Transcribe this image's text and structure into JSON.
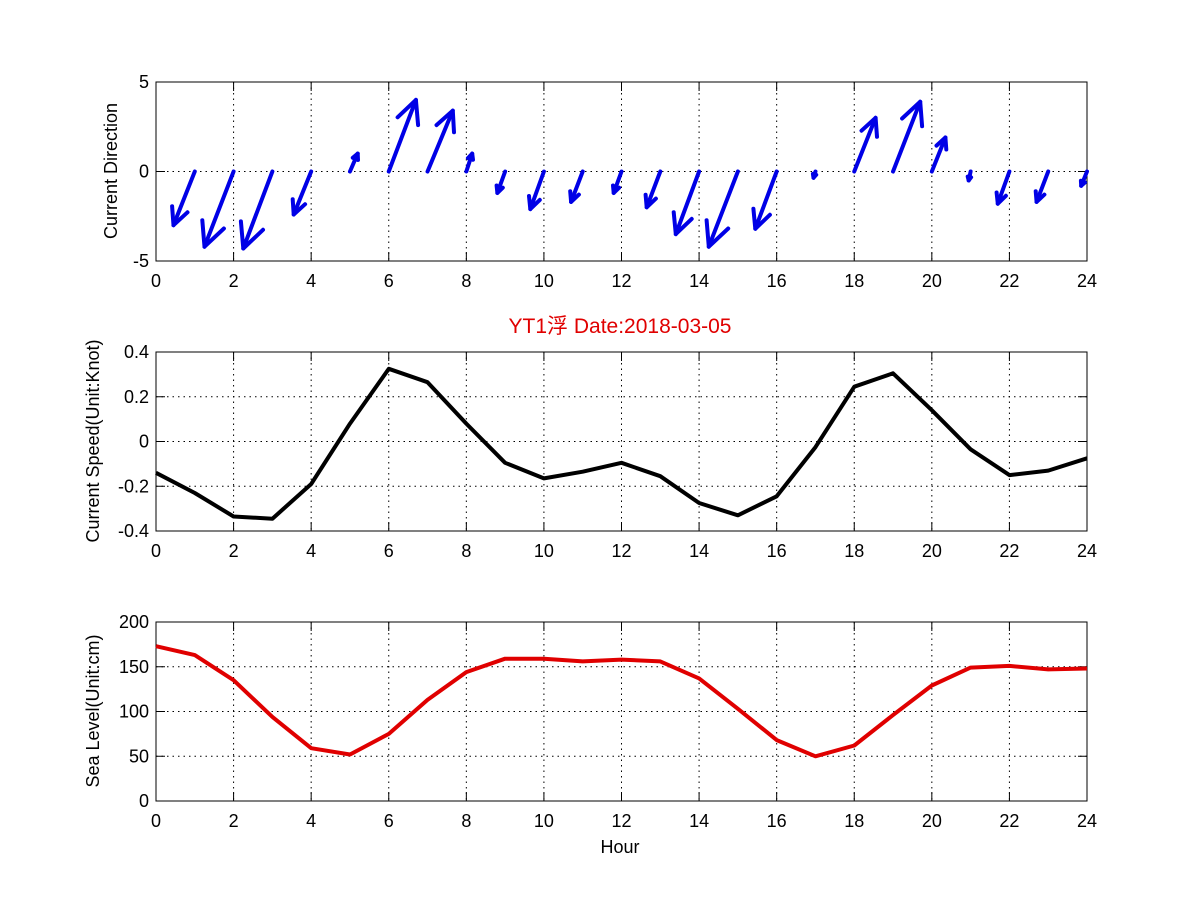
{
  "figure": {
    "title": "YT1浮    Date:2018-03-05",
    "title_color": "#e00000"
  },
  "chart_data": [
    {
      "type": "quiver",
      "ylabel": "Current Direction",
      "xlim": [
        0,
        24
      ],
      "ylim": [
        -5,
        5
      ],
      "xticks": [
        0,
        2,
        4,
        6,
        8,
        10,
        12,
        14,
        16,
        18,
        20,
        22,
        24
      ],
      "yticks": [
        -5,
        0,
        5
      ],
      "grid": true,
      "color": "#0000e6",
      "vectors": [
        {
          "x": 1,
          "u": -0.55,
          "v": -3.0
        },
        {
          "x": 2,
          "u": -0.75,
          "v": -4.2
        },
        {
          "x": 3,
          "u": -0.75,
          "v": -4.3
        },
        {
          "x": 4,
          "u": -0.45,
          "v": -2.4
        },
        {
          "x": 5,
          "u": 0.2,
          "v": 1.0
        },
        {
          "x": 6,
          "u": 0.7,
          "v": 4.0
        },
        {
          "x": 7,
          "u": 0.65,
          "v": 3.4
        },
        {
          "x": 8,
          "u": 0.15,
          "v": 1.0
        },
        {
          "x": 9,
          "u": -0.2,
          "v": -1.2
        },
        {
          "x": 10,
          "u": -0.35,
          "v": -2.1
        },
        {
          "x": 11,
          "u": -0.3,
          "v": -1.7
        },
        {
          "x": 12,
          "u": -0.2,
          "v": -1.2
        },
        {
          "x": 13,
          "u": -0.35,
          "v": -2.0
        },
        {
          "x": 14,
          "u": -0.6,
          "v": -3.5
        },
        {
          "x": 15,
          "u": -0.75,
          "v": -4.2
        },
        {
          "x": 16,
          "u": -0.55,
          "v": -3.2
        },
        {
          "x": 17,
          "u": -0.05,
          "v": -0.35
        },
        {
          "x": 18,
          "u": 0.55,
          "v": 3.0
        },
        {
          "x": 19,
          "u": 0.7,
          "v": 3.9
        },
        {
          "x": 20,
          "u": 0.35,
          "v": 1.9
        },
        {
          "x": 21,
          "u": -0.05,
          "v": -0.5
        },
        {
          "x": 22,
          "u": -0.3,
          "v": -1.8
        },
        {
          "x": 23,
          "u": -0.3,
          "v": -1.7
        },
        {
          "x": 24,
          "u": -0.15,
          "v": -0.8
        }
      ]
    },
    {
      "type": "line",
      "ylabel": "Current Speed(Unit:Knot)",
      "xlim": [
        0,
        24
      ],
      "ylim": [
        -0.4,
        0.4
      ],
      "xticks": [
        0,
        2,
        4,
        6,
        8,
        10,
        12,
        14,
        16,
        18,
        20,
        22,
        24
      ],
      "yticks": [
        -0.4,
        -0.2,
        0,
        0.2,
        0.4
      ],
      "grid": true,
      "color": "#000000",
      "x": [
        0,
        1,
        2,
        3,
        4,
        5,
        6,
        7,
        8,
        9,
        10,
        11,
        12,
        13,
        14,
        15,
        16,
        17,
        18,
        19,
        20,
        21,
        22,
        23,
        24
      ],
      "y": [
        -0.14,
        -0.23,
        -0.335,
        -0.345,
        -0.19,
        0.08,
        0.325,
        0.265,
        0.08,
        -0.095,
        -0.165,
        -0.135,
        -0.095,
        -0.155,
        -0.275,
        -0.33,
        -0.245,
        -0.025,
        0.245,
        0.305,
        0.14,
        -0.035,
        -0.15,
        -0.13,
        -0.075
      ]
    },
    {
      "type": "line",
      "xlabel": "Hour",
      "ylabel": "Sea Level(Unit:cm)",
      "xlim": [
        0,
        24
      ],
      "ylim": [
        0,
        200
      ],
      "xticks": [
        0,
        2,
        4,
        6,
        8,
        10,
        12,
        14,
        16,
        18,
        20,
        22,
        24
      ],
      "yticks": [
        0,
        50,
        100,
        150,
        200
      ],
      "grid": true,
      "color": "#e00000",
      "x": [
        0,
        1,
        2,
        3,
        4,
        5,
        6,
        7,
        8,
        9,
        10,
        11,
        12,
        13,
        14,
        15,
        16,
        17,
        18,
        19,
        20,
        21,
        22,
        23,
        24
      ],
      "y": [
        173,
        163,
        135,
        94,
        59,
        52,
        75,
        113,
        144,
        159,
        159,
        156,
        158,
        156,
        137,
        103,
        68,
        50,
        62,
        96,
        129,
        149,
        151,
        147,
        148
      ]
    }
  ]
}
